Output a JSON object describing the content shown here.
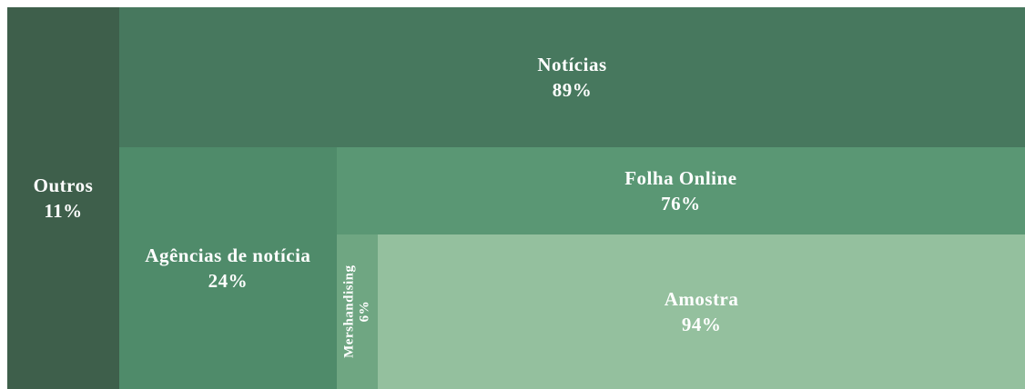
{
  "chart_data": {
    "type": "treemap",
    "nodes": [
      {
        "name": "Outros",
        "value": 11,
        "value_label": "11%",
        "color": "#3e5f4b"
      },
      {
        "name": "Notícias",
        "value": 89,
        "value_label": "89%",
        "color": "#47785e",
        "children": [
          {
            "name": "Agências de notícia",
            "value": 24,
            "value_label": "24%",
            "color": "#4f8b6a"
          },
          {
            "name": "Folha Online",
            "value": 76,
            "value_label": "76%",
            "color": "#5a9774",
            "children": [
              {
                "name": "Mershandising",
                "value": 6,
                "value_label": "6%",
                "color": "#6fa682"
              },
              {
                "name": "Amostra",
                "value": 94,
                "value_label": "94%",
                "color": "#94c09e"
              }
            ]
          }
        ]
      }
    ]
  }
}
